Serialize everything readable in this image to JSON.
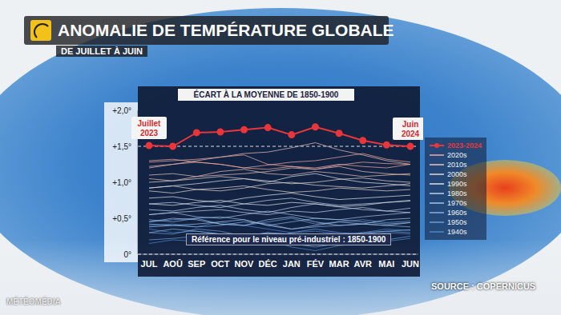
{
  "chart_data": {
    "type": "line",
    "title": "ANOMALIE DE TEMPÉRATURE GLOBALE",
    "subtitle": "DE JUILLET À JUIN",
    "chart_title": "ÉCART À LA MOYENNE DE 1850-1900",
    "source": "SOURCE : COPERNICUS",
    "brand": "MÉTÉOMÉDIA",
    "note": "Référence pour le niveau pré-industriel : 1850-1900",
    "annotations": [
      {
        "text": "Juillet 2023"
      },
      {
        "text": "Juin 2024"
      }
    ],
    "categories": [
      "JUL",
      "AOÛ",
      "SEP",
      "OCT",
      "NOV",
      "DÉC",
      "JAN",
      "FÉV",
      "MAR",
      "AVR",
      "MAI",
      "JUN"
    ],
    "ylim": [
      0,
      2.0
    ],
    "yticks": [
      {
        "value": 0,
        "label": "0°"
      },
      {
        "value": 0.5,
        "label": "+0,5°"
      },
      {
        "value": 1.0,
        "label": "+1,0°"
      },
      {
        "value": 1.5,
        "label": "+1,5°"
      },
      {
        "value": 2.0,
        "label": "+2,0°"
      }
    ],
    "reference_lines": [
      0,
      1.5
    ],
    "grid": false,
    "legend": "right",
    "series": [
      {
        "name": "2023-2024",
        "color": "#e8363a",
        "marker": "circle",
        "values": [
          1.51,
          1.5,
          1.69,
          1.7,
          1.73,
          1.76,
          1.66,
          1.77,
          1.68,
          1.58,
          1.52,
          1.5
        ]
      },
      {
        "name": "2020s",
        "color": "#f0a9a0",
        "values": [
          [
            1.28,
            1.3,
            1.32,
            1.35,
            1.38,
            1.25,
            1.22,
            1.18,
            1.24,
            1.28,
            1.26,
            1.25
          ],
          [
            1.22,
            1.25,
            1.28,
            1.25,
            1.2,
            1.18,
            1.22,
            1.2,
            1.25,
            1.22,
            1.2,
            1.25
          ],
          [
            1.3,
            1.32,
            1.28,
            1.25,
            1.2,
            1.24,
            1.28,
            1.3,
            1.35,
            1.4,
            1.32,
            1.28
          ]
        ]
      },
      {
        "name": "2010s",
        "color": "#eac2b8",
        "values": [
          [
            1.1,
            1.12,
            1.08,
            1.15,
            1.18,
            1.12,
            1.1,
            1.15,
            1.12,
            1.08,
            1.1,
            1.12
          ],
          [
            1.2,
            1.25,
            1.3,
            1.35,
            1.4,
            1.42,
            1.48,
            1.55,
            1.45,
            1.38,
            1.3,
            1.25
          ],
          [
            1.05,
            1.02,
            1.08,
            1.1,
            1.12,
            1.15,
            1.2,
            1.18,
            1.22,
            1.15,
            1.12,
            1.1
          ]
        ]
      },
      {
        "name": "2000s",
        "color": "#e3d6d2",
        "values": [
          [
            0.92,
            0.95,
            0.9,
            0.88,
            0.92,
            0.98,
            1.0,
            0.96,
            0.94,
            0.92,
            0.95,
            0.98
          ],
          [
            1.0,
            1.02,
            1.05,
            1.08,
            1.05,
            1.02,
            0.98,
            1.0,
            1.04,
            1.06,
            1.02,
            1.0
          ],
          [
            0.88,
            0.85,
            0.9,
            0.92,
            0.95,
            0.9,
            0.86,
            0.88,
            0.92,
            0.9,
            0.88,
            0.9
          ]
        ]
      },
      {
        "name": "1990s",
        "color": "#dde3ea",
        "values": [
          [
            0.78,
            0.8,
            0.75,
            0.72,
            0.78,
            0.82,
            0.85,
            0.8,
            0.76,
            0.78,
            0.8,
            0.82
          ],
          [
            0.7,
            0.68,
            0.72,
            0.75,
            0.7,
            0.68,
            0.72,
            0.7,
            0.66,
            0.68,
            0.72,
            0.74
          ],
          [
            0.92,
            0.95,
            0.98,
            1.02,
            1.05,
            1.0,
            1.08,
            1.12,
            1.05,
            1.0,
            0.98,
            0.95
          ]
        ]
      },
      {
        "name": "1980s",
        "color": "#bfd3ea",
        "values": [
          [
            0.62,
            0.6,
            0.65,
            0.68,
            0.62,
            0.58,
            0.65,
            0.7,
            0.66,
            0.62,
            0.6,
            0.64
          ],
          [
            0.7,
            0.72,
            0.68,
            0.65,
            0.7,
            0.75,
            0.78,
            0.72,
            0.68,
            0.7,
            0.72,
            0.75
          ],
          [
            0.55,
            0.58,
            0.6,
            0.62,
            0.58,
            0.55,
            0.6,
            0.58,
            0.62,
            0.65,
            0.6,
            0.58
          ]
        ]
      },
      {
        "name": "1970s",
        "color": "#a3c2e6",
        "values": [
          [
            0.45,
            0.5,
            0.48,
            0.42,
            0.4,
            0.48,
            0.52,
            0.45,
            0.4,
            0.42,
            0.48,
            0.5
          ],
          [
            0.55,
            0.58,
            0.52,
            0.5,
            0.55,
            0.6,
            0.55,
            0.5,
            0.48,
            0.52,
            0.55,
            0.58
          ],
          [
            0.38,
            0.4,
            0.42,
            0.45,
            0.48,
            0.4,
            0.35,
            0.4,
            0.45,
            0.42,
            0.4,
            0.44
          ]
        ]
      },
      {
        "name": "1960s",
        "color": "#86afe0",
        "values": [
          [
            0.42,
            0.4,
            0.38,
            0.4,
            0.45,
            0.42,
            0.35,
            0.38,
            0.4,
            0.42,
            0.4,
            0.38
          ],
          [
            0.3,
            0.35,
            0.32,
            0.28,
            0.25,
            0.3,
            0.28,
            0.22,
            0.25,
            0.3,
            0.32,
            0.34
          ],
          [
            0.48,
            0.45,
            0.5,
            0.52,
            0.48,
            0.4,
            0.45,
            0.5,
            0.48,
            0.45,
            0.42,
            0.44
          ]
        ]
      },
      {
        "name": "1950s",
        "color": "#6b9cd8",
        "values": [
          [
            0.3,
            0.28,
            0.35,
            0.32,
            0.25,
            0.22,
            0.3,
            0.35,
            0.3,
            0.28,
            0.32,
            0.3
          ],
          [
            0.2,
            0.22,
            0.25,
            0.2,
            0.18,
            0.25,
            0.15,
            0.1,
            0.15,
            0.18,
            0.2,
            0.25
          ],
          [
            0.45,
            0.48,
            0.5,
            0.42,
            0.4,
            0.45,
            0.5,
            0.42,
            0.45,
            0.48,
            0.44,
            0.46
          ]
        ]
      },
      {
        "name": "1940s",
        "color": "#4f86cc",
        "values": [
          [
            0.35,
            0.3,
            0.32,
            0.28,
            0.25,
            0.3,
            0.22,
            0.18,
            0.2,
            0.25,
            0.3,
            0.28
          ],
          [
            0.15,
            0.2,
            0.18,
            0.22,
            0.28,
            0.2,
            0.1,
            0.05,
            0.12,
            0.15,
            0.18,
            0.22
          ],
          [
            0.4,
            0.42,
            0.38,
            0.45,
            0.4,
            0.35,
            0.3,
            0.32,
            0.28,
            0.3,
            0.35,
            0.33
          ]
        ]
      }
    ]
  }
}
